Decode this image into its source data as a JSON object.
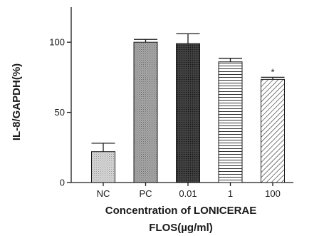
{
  "chart_data": {
    "type": "bar",
    "xlabel_line1": "Concentration of LONICERAE",
    "xlabel_line2": "FLOS(µg/ml)",
    "ylabel": "IL-8/GAPDH(%)",
    "ylim": [
      0,
      125
    ],
    "yticks": [
      0,
      50,
      100
    ],
    "ytick_labels": [
      "0",
      "50",
      "100"
    ],
    "categories": [
      "NC",
      "PC",
      "0.01",
      "1",
      "100"
    ],
    "values": [
      22,
      100,
      99,
      86,
      73.5
    ],
    "errors": [
      6,
      2,
      7,
      2.5,
      1.5
    ],
    "annotations": [
      "",
      "",
      "",
      "",
      "*"
    ],
    "patterns": [
      "dots",
      "dense-dots",
      "dark-dots",
      "horizontal-lines",
      "diagonal-lines"
    ]
  }
}
